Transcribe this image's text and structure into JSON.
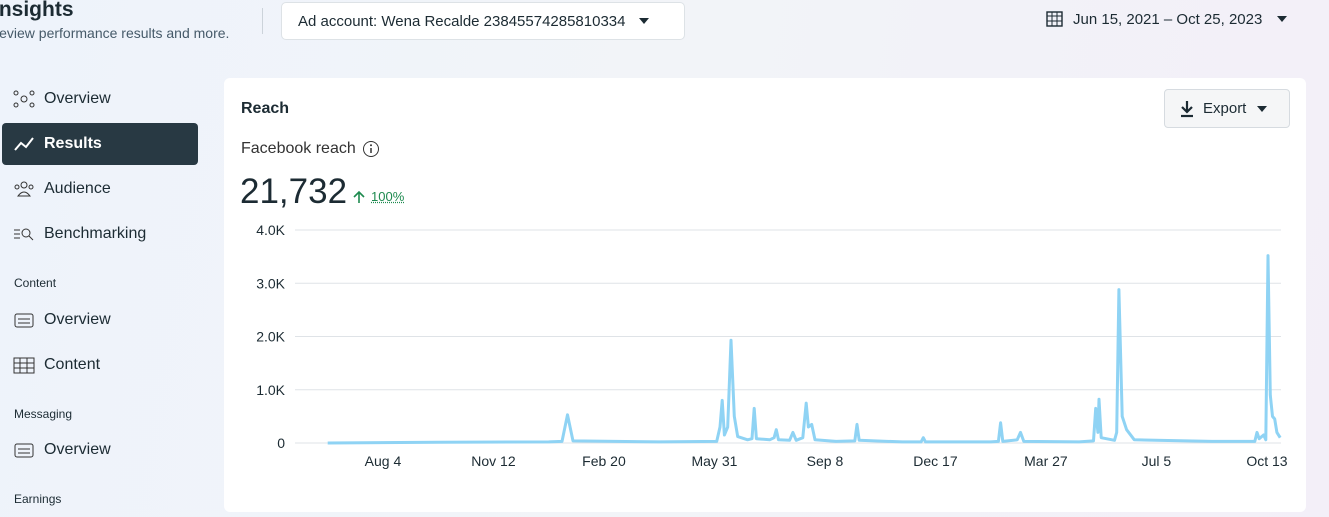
{
  "header": {
    "title": "Insights",
    "subtitle": "Review performance results and more.",
    "ad_account": "Ad account: Wena Recalde 23845574285810334",
    "date_range": "Jun 15, 2021 – Oct 25, 2023"
  },
  "sidebar": {
    "items": [
      "Overview",
      "Results",
      "Audience",
      "Benchmarking"
    ],
    "sections": [
      {
        "title": "Content",
        "items": [
          "Overview",
          "Content"
        ]
      },
      {
        "title": "Messaging",
        "items": [
          "Overview"
        ]
      },
      {
        "title": "Earnings"
      }
    ]
  },
  "card": {
    "title": "Reach",
    "export": "Export",
    "metric_label": "Facebook reach",
    "metric_value": "21,732",
    "change": "100%"
  },
  "chart_data": {
    "type": "line",
    "color": "#8fd3f4",
    "x": [
      0,
      100,
      200,
      212,
      217,
      222,
      300,
      352,
      355,
      357,
      359,
      362,
      365,
      368,
      371,
      380,
      384,
      386,
      388,
      400,
      404,
      406,
      408,
      418,
      421,
      424,
      430,
      433,
      435,
      438,
      441,
      460,
      477,
      479,
      481,
      520,
      537,
      539,
      541,
      600,
      607,
      609,
      611,
      624,
      627,
      630,
      680,
      693,
      695,
      697,
      698,
      700,
      712,
      714,
      716,
      719,
      723,
      730,
      800,
      839,
      841,
      843,
      847,
      849,
      851,
      853,
      855,
      857,
      859,
      862
    ],
    "values": [
      0,
      15,
      20,
      30,
      530,
      40,
      20,
      30,
      300,
      800,
      150,
      300,
      1930,
      500,
      120,
      60,
      80,
      650,
      80,
      60,
      100,
      250,
      60,
      50,
      200,
      50,
      100,
      750,
      300,
      350,
      60,
      30,
      40,
      350,
      50,
      20,
      20,
      100,
      20,
      20,
      30,
      380,
      30,
      60,
      200,
      30,
      20,
      40,
      650,
      200,
      820,
      100,
      50,
      200,
      2880,
      500,
      250,
      60,
      30,
      30,
      200,
      80,
      150,
      60,
      3520,
      900,
      500,
      450,
      200,
      100
    ],
    "xlim": [
      0,
      862
    ],
    "xticks": [
      {
        "value": 50,
        "label": "Aug 4"
      },
      {
        "value": 150,
        "label": "Nov 12"
      },
      {
        "value": 250,
        "label": "Feb 20"
      },
      {
        "value": 350,
        "label": "May 31"
      },
      {
        "value": 450,
        "label": "Sep 8"
      },
      {
        "value": 550,
        "label": "Dec 17"
      },
      {
        "value": 650,
        "label": "Mar 27"
      },
      {
        "value": 750,
        "label": "Jul 5"
      },
      {
        "value": 850,
        "label": "Oct 13"
      }
    ],
    "ylim": [
      0,
      4000
    ],
    "yticks": [
      0,
      {
        "value": 1000,
        "label": "1.0K"
      },
      {
        "value": 2000,
        "label": "2.0K"
      },
      {
        "value": 3000,
        "label": "3.0K"
      },
      {
        "value": 4000,
        "label": "4.0K"
      }
    ],
    "grid": true
  }
}
